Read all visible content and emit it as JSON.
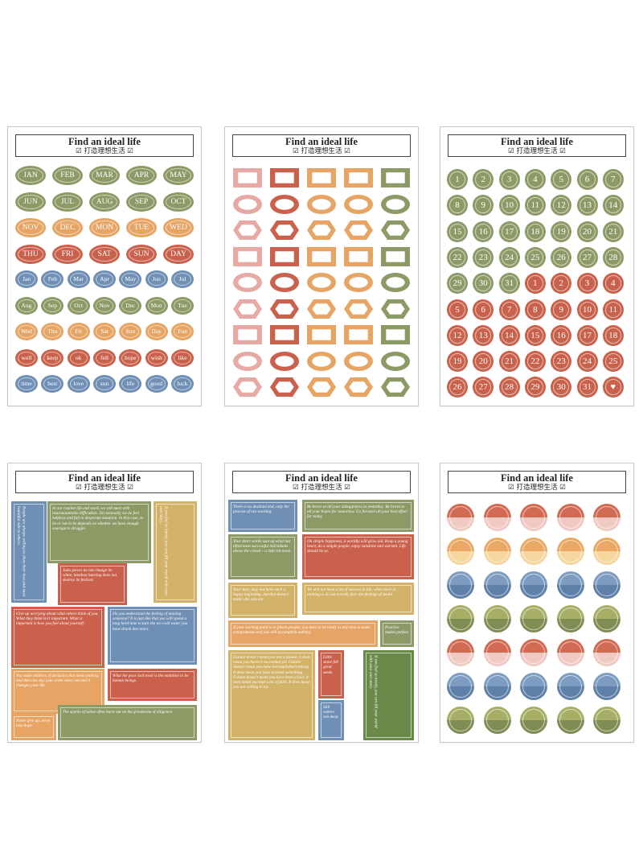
{
  "header": {
    "title": "Find an ideal life",
    "subtitle": "打造理想生活"
  },
  "colors": {
    "red": "#c9614c",
    "green": "#8c9a66",
    "orange": "#e7a565",
    "blue": "#6f8fb4",
    "pink": "#e6a9a4",
    "yellow": "#d9c675",
    "teal": "#6b8a4a",
    "sand": "#d3b26a"
  },
  "sheet1": {
    "rows": [
      {
        "color": "green",
        "items": [
          "JAN",
          "FEB",
          "MAR",
          "APR",
          "MAY"
        ]
      },
      {
        "color": "green",
        "items": [
          "JUN",
          "JUL",
          "AUG",
          "SEP",
          "OCT"
        ]
      },
      {
        "color": "orange",
        "items": [
          "NOV",
          "DEC",
          "MON",
          "TUE",
          "WED"
        ]
      },
      {
        "color": "red",
        "items": [
          "THU",
          "FRI",
          "SAT",
          "SUN",
          "DAY"
        ]
      },
      {
        "color": "blue",
        "items": [
          "Jan",
          "Feb",
          "Mar",
          "Apr",
          "May",
          "Jun",
          "Jul"
        ]
      },
      {
        "color": "green",
        "items": [
          "Aug",
          "Sep",
          "Oct",
          "Nov",
          "Dec",
          "Mon",
          "Tue"
        ]
      },
      {
        "color": "orange",
        "items": [
          "Wed",
          "Thu",
          "Fri",
          "Sat",
          "Sun",
          "Day",
          "Fun"
        ]
      },
      {
        "color": "red",
        "items": [
          "well",
          "keep",
          "ok",
          "fell",
          "hope",
          "wish",
          "like"
        ]
      },
      {
        "color": "blue",
        "items": [
          "time",
          "best",
          "love",
          "sun",
          "life",
          "good",
          "luck"
        ]
      }
    ]
  },
  "sheet3": {
    "cells": [
      "1",
      "2",
      "3",
      "4",
      "5",
      "6",
      "7",
      "8",
      "9",
      "10",
      "11",
      "12",
      "13",
      "14",
      "15",
      "16",
      "17",
      "18",
      "19",
      "20",
      "21",
      "22",
      "23",
      "24",
      "25",
      "26",
      "27",
      "28",
      "29",
      "30",
      "31",
      "1",
      "2",
      "3",
      "4",
      "5",
      "6",
      "7",
      "8",
      "9",
      "10",
      "11",
      "12",
      "13",
      "14",
      "15",
      "16",
      "17",
      "18",
      "19",
      "20",
      "21",
      "22",
      "23",
      "24",
      "25",
      "26",
      "27",
      "28",
      "29",
      "30",
      "31",
      "♥"
    ],
    "green_count": 31
  },
  "sheet4": {
    "blocks": [
      "In our routine life and work, we will meet with insurmountable difficulties. Occasionally we do feel helpless and fall in desperate situation. In this case, to be or not to be depends on whether we have enough courage to struggle.",
      "Judo pieces do not change its white, bamboo burning does not destroy its festival.",
      "Give up worrying about what others think of you. What they think isn't important. What is important is how you feel about yourself.",
      "Do you understand the feeling of missing someone? It is just like that you will spend a long hard time to turn the ice-cold water you have drunk into tears.",
      "You make millions of decisions that mean nothing and then one day your order takes out and it changes your life.",
      "What the poor lack most is the ambition to be human beings.",
      "Never give up, never lose hope.",
      "The sparks of talent often burst out on the grindstone of diligence.",
      "People are always willing to show their best and most beautiful side to others.",
      "If you feel so lonely, you can fill your world with your own story."
    ]
  },
  "sheet5": {
    "blocks": [
      "There is no destined end, only the process of not working.",
      "Be brave at all your unhappiness in yesterday. Be brave to all your hopes for tomorrow. Go forward all your best effort for today.",
      "Your short words sum up what has lifted most successful individuals above the crowd – a little bit more.",
      "On simple happiness, a worldly will grow old. Keep a young heart, do a simple people, enjoy sunshine and warmth. Life should be so.",
      "Your story may not have such a happy beginning, but that doesn't make who you are.",
      "We will not have a lot of success in life, when there is nothing to do but bravely face the feelings of doubt.",
      "If your starting point is to please people, you have to be ready at any time to make compromises and you will accomplish nothing.",
      "Practice makes perfect.",
      "Failure doesn't mean you are a failure, it does mean you haven't succeeded yet. Failure doesn't mean you have accomplished nothing. It does mean you have learned something. Failure doesn't mean you have been a fool. It does mean you had a lot of faith. It does mean you are willing to try.",
      "Little stone fell great seeds.",
      "If you feel so lonely, you can fill your world with your own story.",
      "Still waters run deep."
    ]
  },
  "sheet6": {
    "rows": [
      "red",
      "orange",
      "blue",
      "green",
      "red",
      "blue",
      "green"
    ]
  }
}
